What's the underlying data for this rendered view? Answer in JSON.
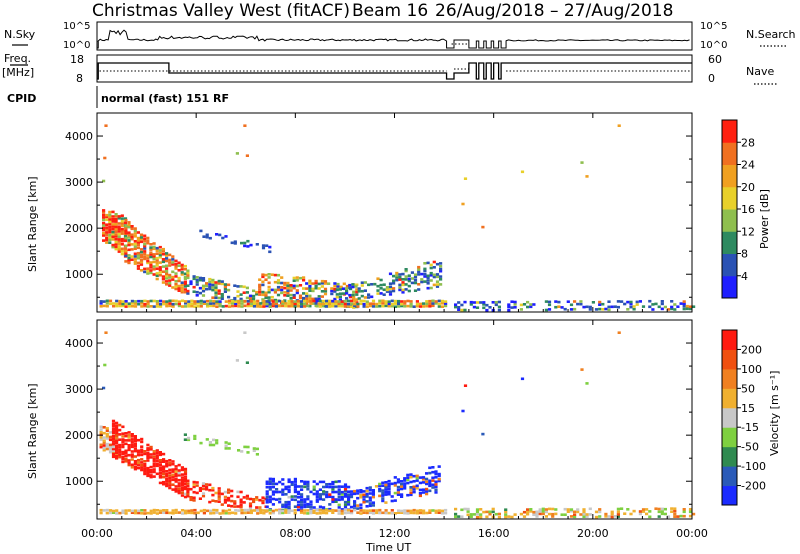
{
  "header": {
    "station": "Christmas Valley West (fitACF)",
    "beam": "Beam 16",
    "date_range": "26/Aug/2018 – 27/Aug/2018",
    "mode": "normal (fast) 151 RF"
  },
  "panel_labels": {
    "nsky": "N.Sky",
    "freq": "Freq.",
    "freq_unit": "[MHz]",
    "cpid": "CPID",
    "nsearch": "N.Search",
    "nave": "Nave"
  },
  "chart_data": [
    {
      "type": "line",
      "name": "noise",
      "left_ticks": [
        "10^5",
        "10^0"
      ],
      "right_ticks": [
        "10^5",
        "10^0"
      ]
    },
    {
      "type": "line",
      "name": "frequency",
      "left_ticks": [
        "18",
        "8"
      ],
      "right_ticks": [
        "60",
        "0"
      ]
    },
    {
      "type": "heatmap",
      "name": "power",
      "ylabel": "Slant Range [km]",
      "yticks": [
        1000,
        2000,
        3000,
        4000
      ],
      "ylim": [
        180,
        4500
      ],
      "xlim": [
        0,
        24
      ],
      "colorbar": {
        "label": "Power [dB]",
        "ticks": [
          "4",
          "8",
          "12",
          "16",
          "20",
          "24",
          "28"
        ],
        "colors": [
          "#1f1fff",
          "#2a52b4",
          "#2e8a60",
          "#8fbf4f",
          "#e8d02a",
          "#f0a020",
          "#f07020",
          "#ff2010"
        ]
      }
    },
    {
      "type": "heatmap",
      "name": "velocity",
      "ylabel": "Slant Range [km]",
      "yticks": [
        1000,
        2000,
        3000,
        4000
      ],
      "ylim": [
        180,
        4500
      ],
      "xlim": [
        0,
        24
      ],
      "colorbar": {
        "label": "Velocity [m s⁻¹]",
        "ticks": [
          "200",
          "100",
          "50",
          "15",
          "-15",
          "-50",
          "-100",
          "-200"
        ],
        "colors": [
          "#1b2bff",
          "#2a5ab8",
          "#2f8a50",
          "#7ed040",
          "#c8c8c8",
          "#f0b030",
          "#f08020",
          "#f05010",
          "#ff1a10"
        ]
      }
    }
  ],
  "x_axis": {
    "label": "Time UT",
    "ticks": [
      "00:00",
      "04:00",
      "08:00",
      "12:00",
      "16:00",
      "20:00",
      "00:00"
    ]
  }
}
